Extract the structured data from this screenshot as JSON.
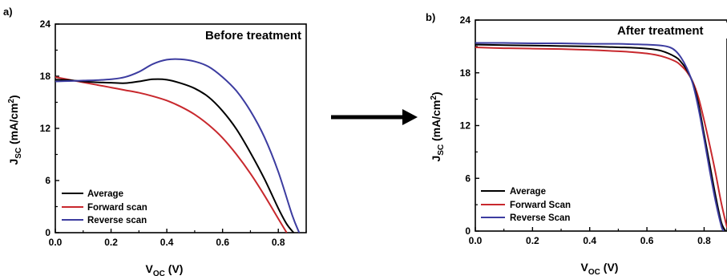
{
  "colors": {
    "average": "#000000",
    "forward": "#c8282d",
    "reverse": "#3c3ca0",
    "arrow": "#000000"
  },
  "arrow_icon": "right-arrow-icon",
  "chart_data": [
    {
      "type": "line",
      "panel_label": "a)",
      "title": "Before treatment",
      "xlabel_main": "V",
      "xlabel_sub": "OC",
      "xlabel_unit": " (V)",
      "ylabel_main": "J",
      "ylabel_sub": "SC",
      "ylabel_unit_pre": " (mA/cm",
      "ylabel_sup": "2",
      "ylabel_unit_post": ")",
      "xlim": [
        0,
        0.9
      ],
      "ylim": [
        0,
        24
      ],
      "xticks": [
        0.0,
        0.2,
        0.4,
        0.6,
        0.8
      ],
      "xtick_labels": [
        "0.0",
        "0.2",
        "0.4",
        "0.6",
        "0.8"
      ],
      "yticks": [
        0,
        6,
        12,
        18,
        24
      ],
      "ytick_labels": [
        "0",
        "6",
        "12",
        "18",
        "24"
      ],
      "legend_position": "bottom-left",
      "series": [
        {
          "key": "average",
          "name": "Average",
          "x": [
            0,
            0.05,
            0.1,
            0.15,
            0.2,
            0.25,
            0.3,
            0.35,
            0.4,
            0.45,
            0.5,
            0.55,
            0.6,
            0.65,
            0.7,
            0.75,
            0.8,
            0.83,
            0.855
          ],
          "y": [
            17.6,
            17.55,
            17.4,
            17.3,
            17.25,
            17.2,
            17.4,
            17.65,
            17.6,
            17.2,
            16.6,
            15.6,
            14.0,
            11.9,
            9.2,
            6.2,
            2.8,
            1.0,
            0
          ]
        },
        {
          "key": "forward",
          "name": "Forward scan",
          "x": [
            0,
            0.05,
            0.1,
            0.15,
            0.2,
            0.25,
            0.3,
            0.35,
            0.4,
            0.45,
            0.5,
            0.55,
            0.6,
            0.65,
            0.7,
            0.75,
            0.8,
            0.83
          ],
          "y": [
            17.9,
            17.6,
            17.3,
            17.0,
            16.7,
            16.4,
            16.1,
            15.7,
            15.2,
            14.5,
            13.6,
            12.4,
            10.9,
            9.0,
            6.8,
            4.3,
            1.6,
            0
          ]
        },
        {
          "key": "reverse",
          "name": "Reverse scan",
          "x": [
            0,
            0.05,
            0.1,
            0.15,
            0.2,
            0.25,
            0.3,
            0.35,
            0.4,
            0.45,
            0.5,
            0.55,
            0.6,
            0.65,
            0.7,
            0.75,
            0.8,
            0.85,
            0.875
          ],
          "y": [
            17.4,
            17.45,
            17.5,
            17.55,
            17.65,
            17.9,
            18.5,
            19.4,
            19.9,
            19.95,
            19.7,
            19.1,
            17.9,
            16.3,
            14.0,
            11.0,
            7.0,
            2.0,
            0
          ]
        }
      ]
    },
    {
      "type": "line",
      "panel_label": "b)",
      "title": "After treatment",
      "xlabel_main": "V",
      "xlabel_sub": "OC",
      "xlabel_unit": " (V)",
      "ylabel_main": "J",
      "ylabel_sub": "SC",
      "ylabel_unit_pre": " (mA/cm",
      "ylabel_sup": "2",
      "ylabel_unit_post": ")",
      "xlim": [
        0,
        0.88
      ],
      "ylim": [
        0,
        24
      ],
      "xticks": [
        0.0,
        0.2,
        0.4,
        0.6,
        0.8
      ],
      "xtick_labels": [
        "0.0",
        "0.2",
        "0.4",
        "0.6",
        "0.8"
      ],
      "yticks": [
        0,
        6,
        12,
        18,
        24
      ],
      "ytick_labels": [
        "0",
        "6",
        "12",
        "18",
        "24"
      ],
      "legend_position": "bottom-left",
      "series": [
        {
          "key": "average",
          "name": "Average",
          "x": [
            0,
            0.1,
            0.2,
            0.3,
            0.4,
            0.5,
            0.55,
            0.6,
            0.65,
            0.7,
            0.72,
            0.74,
            0.76,
            0.78,
            0.8,
            0.82,
            0.84,
            0.86,
            0.875
          ],
          "y": [
            21.2,
            21.15,
            21.1,
            21.05,
            21.0,
            20.9,
            20.85,
            20.75,
            20.5,
            19.8,
            19.2,
            18.3,
            16.9,
            14.5,
            11.0,
            7.5,
            4.0,
            1.0,
            0
          ]
        },
        {
          "key": "forward",
          "name": "Forward Scan",
          "x": [
            0,
            0.1,
            0.2,
            0.3,
            0.4,
            0.5,
            0.55,
            0.6,
            0.65,
            0.7,
            0.72,
            0.74,
            0.76,
            0.78,
            0.8,
            0.82,
            0.84,
            0.86,
            0.88
          ],
          "y": [
            20.9,
            20.8,
            20.75,
            20.7,
            20.6,
            20.45,
            20.35,
            20.2,
            19.9,
            19.3,
            18.8,
            18.1,
            17.0,
            15.2,
            12.6,
            9.7,
            6.6,
            3.2,
            0.4
          ]
        },
        {
          "key": "reverse",
          "name": "Reverse Scan",
          "x": [
            0,
            0.1,
            0.2,
            0.3,
            0.4,
            0.5,
            0.55,
            0.6,
            0.65,
            0.68,
            0.7,
            0.72,
            0.74,
            0.76,
            0.78,
            0.8,
            0.82,
            0.84,
            0.86,
            0.868
          ],
          "y": [
            21.4,
            21.4,
            21.35,
            21.35,
            21.3,
            21.3,
            21.25,
            21.2,
            21.1,
            20.9,
            20.5,
            19.7,
            18.5,
            16.8,
            14.0,
            10.5,
            6.8,
            3.4,
            0.6,
            0
          ]
        }
      ]
    }
  ]
}
